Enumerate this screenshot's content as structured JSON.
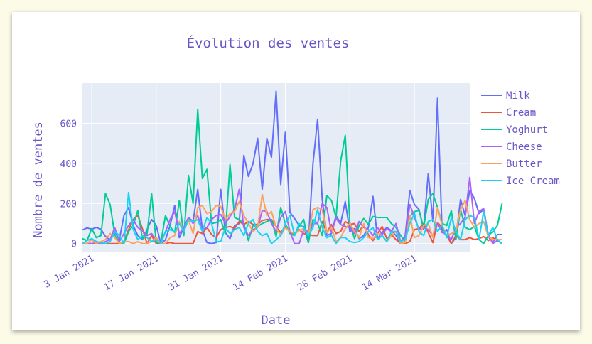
{
  "chart_data": {
    "type": "line",
    "title": "Évolution des ventes",
    "xlabel": "Date",
    "ylabel": "Nombre de ventes",
    "x_start": "2021-01-01",
    "x_range": [
      "2021-01-01",
      "2021-03-26"
    ],
    "ylim": [
      -40,
      800
    ],
    "yticks": [
      0,
      200,
      400,
      600
    ],
    "ytick_labels": [
      "0",
      "200",
      "400",
      "600"
    ],
    "xticks": [
      "2021-01-03",
      "2021-01-17",
      "2021-01-31",
      "2021-02-14",
      "2021-02-28",
      "2021-03-14"
    ],
    "xtick_labels": [
      "3 Jan 2021",
      "17 Jan 2021",
      "31 Jan 2021",
      "14 Feb 2021",
      "28 Feb 2021",
      "14 Mar 2021"
    ],
    "grid": true,
    "legend_position": "right",
    "series": [
      {
        "name": "Milk",
        "color": "#636efa",
        "values": [
          68,
          78,
          72,
          80,
          72,
          36,
          17,
          62,
          20,
          140,
          180,
          90,
          40,
          20,
          70,
          120,
          90,
          0,
          18,
          90,
          190,
          30,
          80,
          130,
          110,
          270,
          70,
          5,
          0,
          5,
          270,
          55,
          25,
          90,
          100,
          440,
          335,
          400,
          525,
          270,
          525,
          430,
          760,
          295,
          555,
          155,
          125,
          90,
          85,
          5,
          400,
          620,
          220,
          40,
          50,
          140,
          100,
          210,
          60,
          75,
          25,
          40,
          80,
          235,
          25,
          55,
          80,
          65,
          40,
          0,
          40,
          265,
          195,
          170,
          70,
          350,
          110,
          725,
          55,
          70,
          0,
          30,
          220,
          140,
          265,
          225,
          150,
          170,
          35,
          5,
          45,
          45
        ]
      },
      {
        "name": "Cream",
        "color": "#ef553b",
        "values": [
          0,
          0,
          0,
          0,
          0,
          0,
          0,
          0,
          0,
          10,
          70,
          120,
          140,
          75,
          0,
          40,
          0,
          0,
          0,
          5,
          0,
          0,
          0,
          0,
          0,
          60,
          50,
          80,
          45,
          30,
          70,
          80,
          85,
          75,
          110,
          95,
          110,
          95,
          95,
          115,
          120,
          120,
          85,
          55,
          85,
          60,
          45,
          70,
          50,
          45,
          40,
          40,
          110,
          55,
          95,
          50,
          60,
          110,
          95,
          100,
          60,
          95,
          45,
          15,
          50,
          85,
          25,
          45,
          20,
          0,
          0,
          10,
          70,
          75,
          100,
          55,
          5,
          105,
          80,
          40,
          0,
          40,
          20,
          20,
          30,
          20,
          25,
          35,
          15,
          30,
          15,
          0
        ]
      },
      {
        "name": "Yoghurt",
        "color": "#00cc96",
        "values": [
          25,
          15,
          75,
          30,
          40,
          250,
          195,
          45,
          0,
          0,
          60,
          90,
          165,
          25,
          45,
          250,
          5,
          5,
          140,
          85,
          55,
          215,
          40,
          340,
          200,
          670,
          325,
          370,
          100,
          105,
          120,
          50,
          395,
          130,
          120,
          100,
          15,
          90,
          85,
          100,
          110,
          120,
          35,
          180,
          100,
          50,
          40,
          85,
          120,
          5,
          120,
          100,
          40,
          240,
          215,
          130,
          410,
          540,
          100,
          25,
          90,
          125,
          95,
          135,
          130,
          130,
          130,
          100,
          80,
          40,
          10,
          135,
          160,
          165,
          80,
          220,
          250,
          180,
          100,
          90,
          165,
          20,
          170,
          80,
          70,
          85,
          20,
          0,
          40,
          60,
          90,
          200
        ]
      },
      {
        "name": "Cheese",
        "color": "#ab63fa",
        "values": [
          0,
          0,
          0,
          5,
          0,
          10,
          20,
          80,
          10,
          50,
          90,
          120,
          80,
          65,
          40,
          50,
          20,
          0,
          60,
          120,
          160,
          50,
          80,
          130,
          100,
          140,
          70,
          80,
          120,
          140,
          145,
          100,
          135,
          170,
          270,
          80,
          40,
          70,
          80,
          165,
          160,
          100,
          60,
          130,
          160,
          60,
          0,
          0,
          70,
          60,
          100,
          100,
          200,
          180,
          55,
          125,
          95,
          85,
          80,
          50,
          110,
          80,
          70,
          40,
          80,
          45,
          75,
          60,
          100,
          10,
          30,
          195,
          130,
          70,
          80,
          70,
          40,
          100,
          60,
          40,
          20,
          80,
          100,
          130,
          330,
          100,
          160,
          175,
          45,
          0,
          15,
          0
        ]
      },
      {
        "name": "Butter",
        "color": "#ffa15a",
        "values": [
          0,
          0,
          20,
          0,
          10,
          20,
          50,
          30,
          0,
          10,
          10,
          0,
          10,
          0,
          0,
          10,
          30,
          0,
          0,
          30,
          40,
          110,
          60,
          120,
          50,
          180,
          190,
          150,
          160,
          190,
          185,
          120,
          150,
          160,
          210,
          140,
          100,
          60,
          80,
          245,
          140,
          160,
          80,
          40,
          80,
          60,
          50,
          65,
          75,
          40,
          170,
          180,
          170,
          55,
          80,
          10,
          30,
          75,
          100,
          60,
          30,
          100,
          30,
          25,
          50,
          40,
          10,
          40,
          60,
          0,
          5,
          140,
          30,
          40,
          90,
          100,
          30,
          180,
          90,
          40,
          50,
          60,
          170,
          215,
          120,
          80,
          100,
          110,
          35,
          20,
          20,
          20
        ]
      },
      {
        "name": "Ice Cream",
        "color": "#19d3f3",
        "values": [
          0,
          15,
          25,
          10,
          5,
          0,
          10,
          60,
          40,
          0,
          255,
          70,
          20,
          40,
          30,
          10,
          20,
          0,
          60,
          70,
          60,
          100,
          60,
          120,
          110,
          120,
          60,
          130,
          100,
          10,
          10,
          80,
          50,
          70,
          80,
          40,
          100,
          120,
          60,
          40,
          50,
          0,
          20,
          40,
          100,
          140,
          40,
          100,
          80,
          40,
          80,
          170,
          80,
          30,
          40,
          0,
          30,
          30,
          10,
          5,
          10,
          30,
          60,
          80,
          20,
          40,
          10,
          60,
          60,
          10,
          20,
          100,
          150,
          60,
          40,
          110,
          120,
          60,
          90,
          30,
          130,
          60,
          20,
          120,
          140,
          130,
          20,
          160,
          40,
          80,
          20,
          0
        ]
      }
    ]
  }
}
